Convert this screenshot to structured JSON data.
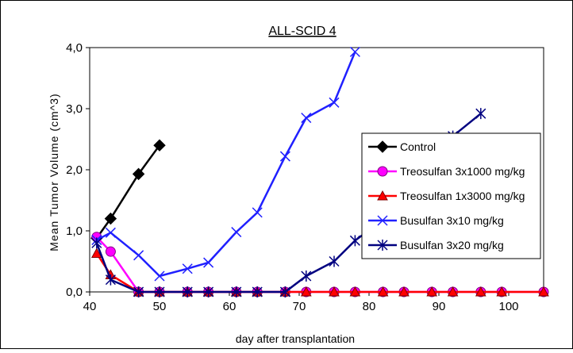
{
  "chart_data": {
    "type": "line",
    "title": "ALL-SCID 4",
    "xlabel": "day after transplantation",
    "ylabel": "Mean Tumor Volume (cm^3)",
    "xlim": [
      40,
      105
    ],
    "ylim": [
      0,
      4
    ],
    "x_ticks": [
      40,
      50,
      60,
      70,
      80,
      90,
      100
    ],
    "x_tick_labels": [
      "40",
      "50",
      "60",
      "70",
      "80",
      "90",
      "100"
    ],
    "y_ticks": [
      0,
      1,
      2,
      3,
      4
    ],
    "y_tick_labels": [
      "0,0",
      "1,0",
      "2,0",
      "3,0",
      "4,0"
    ],
    "grid": false,
    "legend_position": "right",
    "series": [
      {
        "name": "Control",
        "color": "#000000",
        "marker": "diamond",
        "points": [
          [
            41,
            0.88
          ],
          [
            43,
            1.2
          ],
          [
            47,
            1.93
          ],
          [
            50,
            2.4
          ]
        ]
      },
      {
        "name": "Treosulfan 3x1000 mg/kg",
        "color": "#ff00ff",
        "marker": "circle",
        "points": [
          [
            41,
            0.9
          ],
          [
            43,
            0.66
          ],
          [
            47,
            0
          ],
          [
            50,
            0
          ],
          [
            54,
            0
          ],
          [
            57,
            0
          ],
          [
            61,
            0
          ],
          [
            64,
            0
          ],
          [
            68,
            0
          ],
          [
            71,
            0
          ],
          [
            75,
            0
          ],
          [
            78,
            0
          ],
          [
            82,
            0
          ],
          [
            85,
            0
          ],
          [
            89,
            0
          ],
          [
            92,
            0
          ],
          [
            96,
            0
          ],
          [
            99,
            0
          ],
          [
            105,
            0
          ]
        ]
      },
      {
        "name": "Treosulfan 1x3000 mg/kg",
        "color": "#ff0000",
        "marker": "triangle",
        "points": [
          [
            41,
            0.63
          ],
          [
            43,
            0.28
          ],
          [
            47,
            0
          ],
          [
            50,
            0
          ],
          [
            54,
            0
          ],
          [
            57,
            0
          ],
          [
            61,
            0
          ],
          [
            64,
            0
          ],
          [
            68,
            0
          ],
          [
            71,
            0
          ],
          [
            75,
            0
          ],
          [
            78,
            0
          ],
          [
            82,
            0
          ],
          [
            85,
            0
          ],
          [
            89,
            0
          ],
          [
            92,
            0
          ],
          [
            96,
            0
          ],
          [
            99,
            0
          ],
          [
            105,
            0
          ]
        ]
      },
      {
        "name": "Busulfan 3x10 mg/kg",
        "color": "#2020ff",
        "marker": "x",
        "points": [
          [
            41,
            0.85
          ],
          [
            43,
            0.97
          ],
          [
            47,
            0.6
          ],
          [
            50,
            0.26
          ],
          [
            54,
            0.38
          ],
          [
            57,
            0.48
          ],
          [
            61,
            0.98
          ],
          [
            64,
            1.3
          ],
          [
            68,
            2.22
          ],
          [
            71,
            2.85
          ],
          [
            75,
            3.1
          ],
          [
            78,
            3.93
          ]
        ]
      },
      {
        "name": "Busulfan 3x20 mg/kg",
        "color": "#000080",
        "marker": "star",
        "points": [
          [
            41,
            0.8
          ],
          [
            43,
            0.2
          ],
          [
            47,
            0
          ],
          [
            50,
            0
          ],
          [
            54,
            0
          ],
          [
            57,
            0
          ],
          [
            61,
            0
          ],
          [
            64,
            0
          ],
          [
            68,
            0
          ],
          [
            71,
            0.26
          ],
          [
            75,
            0.5
          ],
          [
            78,
            0.84
          ],
          [
            82,
            1.18
          ],
          [
            92,
            2.55
          ],
          [
            96,
            2.92
          ]
        ]
      }
    ]
  }
}
